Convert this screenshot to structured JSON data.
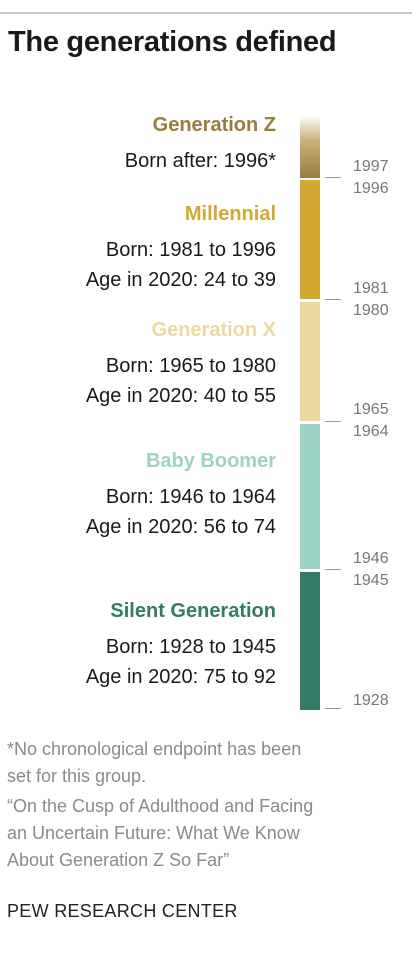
{
  "title": "The generations defined",
  "generations": [
    {
      "name": "Generation Z",
      "color": "#9a7d3e",
      "lines": [
        "Born after: 1996*"
      ]
    },
    {
      "name": "Millennial",
      "color": "#d3a832",
      "lines": [
        "Born: 1981 to 1996",
        "Age in 2020: 24 to 39"
      ]
    },
    {
      "name": "Generation X",
      "color": "#ecd9a0",
      "lines": [
        "Born: 1965 to 1980",
        "Age in 2020: 40 to 55"
      ]
    },
    {
      "name": "Baby Boomer",
      "color": "#9cd3c5",
      "lines": [
        "Born: 1946 to 1964",
        "Age in 2020: 56 to 74"
      ]
    },
    {
      "name": "Silent Generation",
      "color": "#347a66",
      "lines": [
        "Born: 1928 to 1945",
        "Age in 2020: 75 to 92"
      ]
    }
  ],
  "timeline_years": [
    "1997",
    "1996",
    "1981",
    "1980",
    "1965",
    "1964",
    "1946",
    "1945",
    "1928"
  ],
  "footnote": [
    "*No chronological endpoint has been",
    "set for this group."
  ],
  "citation": [
    "“On the Cusp of Adulthood and Facing",
    "an Uncertain Future: What We Know",
    "About Generation Z So Far”"
  ],
  "source": "PEW RESEARCH CENTER"
}
